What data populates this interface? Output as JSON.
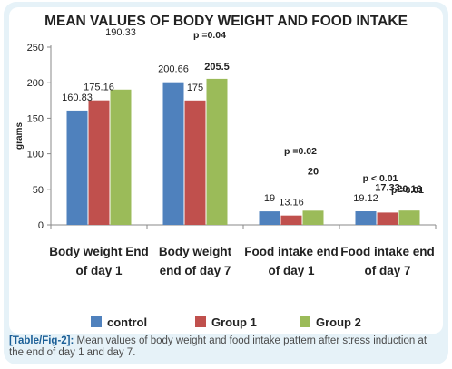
{
  "chart_data": {
    "type": "bar",
    "title": "MEAN VALUES OF BODY WEIGHT AND FOOD INTAKE",
    "ylabel": "grams",
    "ylim": [
      0,
      250
    ],
    "yticks": [
      0,
      50,
      100,
      150,
      200,
      250
    ],
    "categories": [
      [
        "Body weight End",
        "of day 1"
      ],
      [
        "Body weight",
        "end of day 7"
      ],
      [
        "Food intake end",
        "of day 1"
      ],
      [
        "Food intake end",
        "of  day 7"
      ]
    ],
    "series": [
      {
        "name": "control",
        "color": "#4f81bd",
        "values": [
          160.83,
          200.66,
          19,
          19.12
        ],
        "labels": [
          "160.83",
          "200.66",
          "19",
          "19.12"
        ]
      },
      {
        "name": "Group 1",
        "color": "#c0504d",
        "values": [
          175.16,
          175,
          13.16,
          17.33
        ],
        "labels": [
          "175.16",
          "175",
          "13.16",
          "17.33"
        ]
      },
      {
        "name": "Group 2",
        "color": "#9bbb59",
        "values": [
          190.33,
          205.5,
          20,
          20.16
        ],
        "labels": [
          "190.33",
          "205.5",
          "20",
          "20.16"
        ]
      }
    ],
    "annotations": [
      {
        "text": "p =0.04",
        "category": 1
      },
      {
        "text": "p =0.02",
        "category": 2
      },
      {
        "text": "p < 0.01",
        "category": 3
      },
      {
        "text": "p =0.01",
        "category": 3
      }
    ],
    "legend_position": "bottom",
    "grid": false
  },
  "caption": {
    "label": "[Table/Fig-2]:",
    "text": " Mean values of body weight and food intake pattern after stress induction at the end of day 1 and day 7."
  }
}
